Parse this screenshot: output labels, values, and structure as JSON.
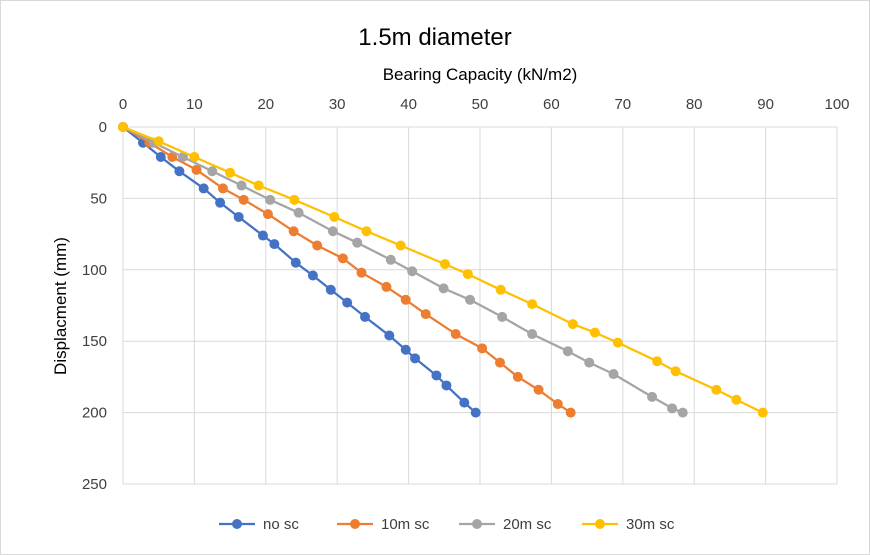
{
  "chart_data": {
    "type": "line",
    "title": "1.5m diameter",
    "xlabel": "Bearing Capacity (kN/m2)",
    "ylabel": "Displacment (mm)",
    "xlim": [
      0,
      100
    ],
    "ylim": [
      0,
      250
    ],
    "x_axis_position": "top",
    "y_axis_inverted": true,
    "xticks": [
      0,
      10,
      20,
      30,
      40,
      50,
      60,
      70,
      80,
      90,
      100
    ],
    "yticks": [
      0,
      50,
      100,
      150,
      200,
      250
    ],
    "grid": true,
    "legend_position": "bottom",
    "series": [
      {
        "name": "no sc",
        "color": "#4472c4",
        "x": [
          0,
          2.8,
          5.3,
          7.9,
          11.3,
          13.6,
          16.2,
          19.6,
          21.2,
          24.2,
          26.6,
          29.1,
          31.4,
          33.9,
          37.3,
          39.6,
          40.9,
          43.9,
          45.3,
          47.8,
          49.4
        ],
        "y": [
          0,
          11,
          21,
          31,
          43,
          53,
          63,
          76,
          82,
          95,
          104,
          114,
          123,
          133,
          146,
          156,
          162,
          174,
          181,
          193,
          200
        ]
      },
      {
        "name": "10m sc",
        "color": "#ed7d31",
        "x": [
          0,
          3.7,
          6.9,
          10.3,
          14,
          16.9,
          20.3,
          23.9,
          27.2,
          30.8,
          33.4,
          36.9,
          39.6,
          42.4,
          46.6,
          50.3,
          52.8,
          55.3,
          58.2,
          60.9,
          62.7
        ],
        "y": [
          0,
          11,
          21,
          30,
          43,
          51,
          61,
          73,
          83,
          92,
          102,
          112,
          121,
          131,
          145,
          155,
          165,
          175,
          184,
          194,
          200
        ]
      },
      {
        "name": "20m sc",
        "color": "#a5a5a5",
        "x": [
          0,
          4.3,
          8.4,
          12.5,
          16.6,
          20.6,
          24.6,
          29.4,
          32.8,
          37.5,
          40.5,
          44.9,
          48.6,
          53.1,
          57.3,
          62.3,
          65.3,
          68.7,
          74.1,
          76.9,
          78.4
        ],
        "y": [
          0,
          11,
          21,
          31,
          41,
          51,
          60,
          73,
          81,
          93,
          101,
          113,
          121,
          133,
          145,
          157,
          165,
          173,
          189,
          197,
          200
        ]
      },
      {
        "name": "30m sc",
        "color": "#ffc000",
        "x": [
          0,
          5,
          10,
          15,
          19,
          24,
          29.6,
          34.1,
          38.9,
          45.1,
          48.3,
          52.9,
          57.3,
          63,
          66.1,
          69.3,
          74.8,
          77.4,
          83.1,
          85.9,
          89.6
        ],
        "y": [
          0,
          10,
          21,
          32,
          41,
          51,
          63,
          73,
          83,
          96,
          103,
          114,
          124,
          138,
          144,
          151,
          164,
          171,
          184,
          191,
          200
        ]
      }
    ]
  }
}
